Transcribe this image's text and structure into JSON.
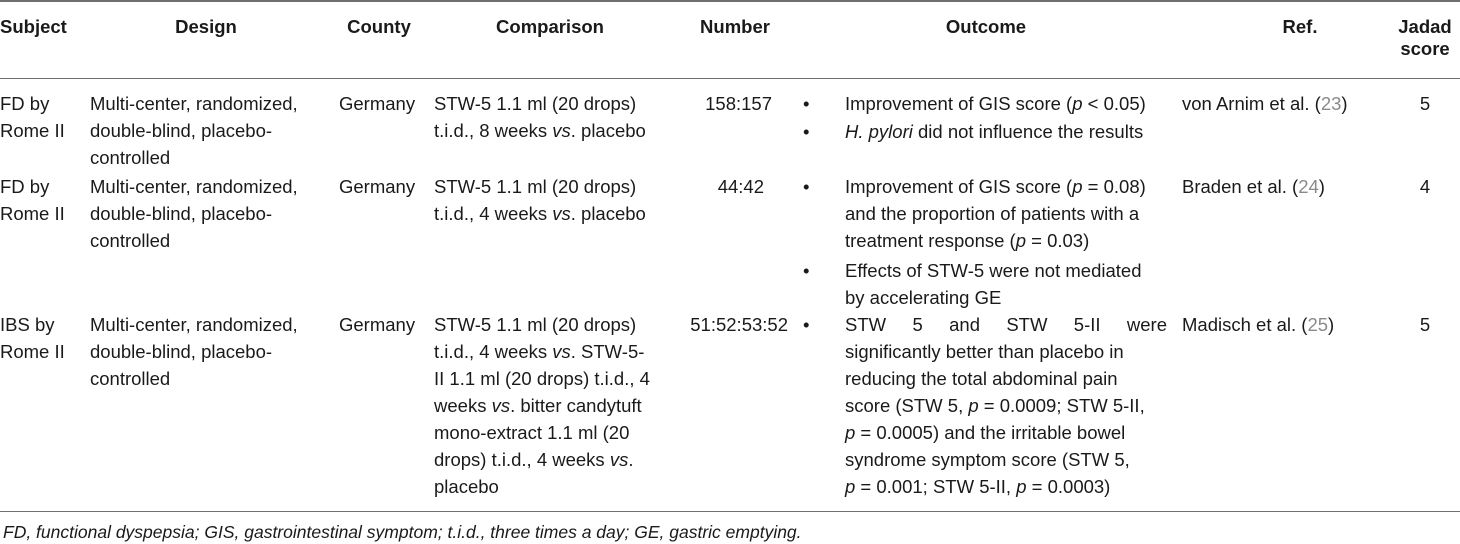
{
  "table": {
    "headers": {
      "subject": "Subject",
      "design": "Design",
      "county": "County",
      "comparison": "Comparison",
      "number": "Number",
      "outcome": "Outcome",
      "ref": "Ref.",
      "jadad_1": "Jadad",
      "jadad_2": "score"
    },
    "rows": [
      {
        "subject": [
          "FD by",
          "Rome II"
        ],
        "design": [
          "Multi-center, randomized,",
          "double-blind, placebo-",
          "controlled"
        ],
        "county": "Germany",
        "comparison": [
          "STW-5 1.1 ml (20 drops)",
          "t.i.d., 8 weeks ",
          "vs",
          ". placebo"
        ],
        "number": "158:157",
        "outcome_1": [
          "Improvement of GIS score (",
          "p",
          " < 0.05)"
        ],
        "outcome_2": [
          "H. pylori",
          " did not influence the results"
        ],
        "ref_name": "von Arnim et al. (",
        "ref_num": "23",
        "ref_close": ")",
        "jadad": "5"
      },
      {
        "subject": [
          "FD by",
          "Rome II"
        ],
        "design": [
          "Multi-center, randomized,",
          "double-blind, placebo-",
          "controlled"
        ],
        "county": "Germany",
        "comparison": [
          "STW-5 1.1 ml (20 drops)",
          "t.i.d., 4 weeks ",
          "vs",
          ". placebo"
        ],
        "number": "44:42",
        "outcome_1": [
          "Improvement of GIS score (",
          "p",
          " = 0.08)",
          "and the proportion of patients with a",
          "treatment response (",
          "p",
          " = 0.03)"
        ],
        "outcome_2": [
          "Effects of STW-5 were not mediated",
          "by accelerating GE"
        ],
        "ref_name": "Braden et al. (",
        "ref_num": "24",
        "ref_close": ")",
        "jadad": "4"
      },
      {
        "subject": [
          "IBS by",
          "Rome II"
        ],
        "design": [
          "Multi-center, randomized,",
          "double-blind, placebo-",
          "controlled"
        ],
        "county": "Germany",
        "comparison": [
          "STW-5 1.1 ml (20 drops)",
          "t.i.d., 4 weeks ",
          "vs",
          ". STW-5-",
          "II 1.1 ml (20 drops) t.i.d., 4",
          "weeks ",
          "vs",
          ". bitter candytuft",
          "mono-extract 1.1 ml (20",
          "drops) t.i.d., 4 weeks ",
          "vs",
          ".",
          "placebo"
        ],
        "number": "51:52:53:52",
        "outcome_1": [
          "STW 5 and STW 5-II were",
          "significantly better than placebo in",
          "reducing the total abdominal pain",
          "score (STW 5, ",
          "p",
          " = 0.0009; STW 5-II,",
          "p",
          " = 0.0005) and the irritable bowel",
          "syndrome symptom score (STW 5,",
          "p",
          " = 0.001; STW 5-II, ",
          "p",
          " = 0.0003)"
        ],
        "ref_name": "Madisch et al. (",
        "ref_num": "25",
        "ref_close": ")",
        "jadad": "5"
      }
    ],
    "bullet": "•",
    "footnote": "FD, functional dyspepsia; GIS, gastrointestinal symptom; t.i.d., three times a day; GE, gastric emptying."
  }
}
